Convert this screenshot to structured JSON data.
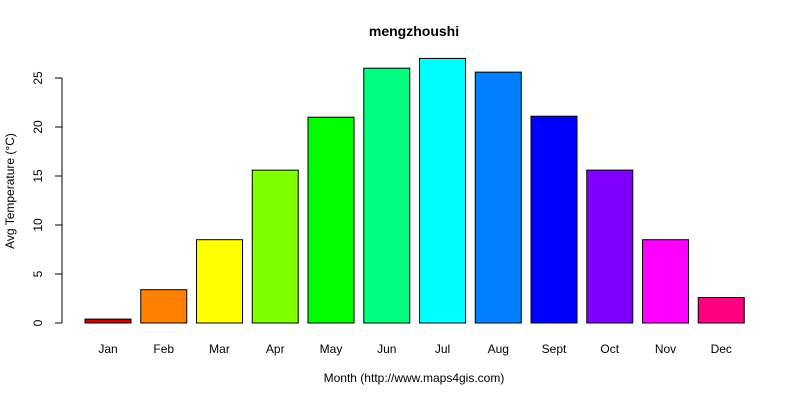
{
  "chart_data": {
    "type": "bar",
    "title": "mengzhoushi",
    "xlabel": "Month (http://www.maps4gis.com)",
    "ylabel": "Avg Temperature (°C)",
    "categories": [
      "Jan",
      "Feb",
      "Mar",
      "Apr",
      "May",
      "Jun",
      "Jul",
      "Aug",
      "Sept",
      "Oct",
      "Nov",
      "Dec"
    ],
    "values": [
      0.4,
      3.4,
      8.5,
      15.6,
      21.0,
      26.0,
      27.0,
      25.6,
      21.1,
      15.6,
      8.5,
      2.6
    ],
    "colors": [
      "#cc0000",
      "#ff8000",
      "#ffff00",
      "#80ff00",
      "#00ff00",
      "#00ff80",
      "#00ffff",
      "#0080ff",
      "#0000ff",
      "#8000ff",
      "#ff00ff",
      "#ff0080"
    ],
    "yticks": [
      0,
      5,
      10,
      15,
      20,
      25
    ],
    "ylim": [
      0,
      27
    ],
    "grid": false,
    "legend": "none"
  }
}
